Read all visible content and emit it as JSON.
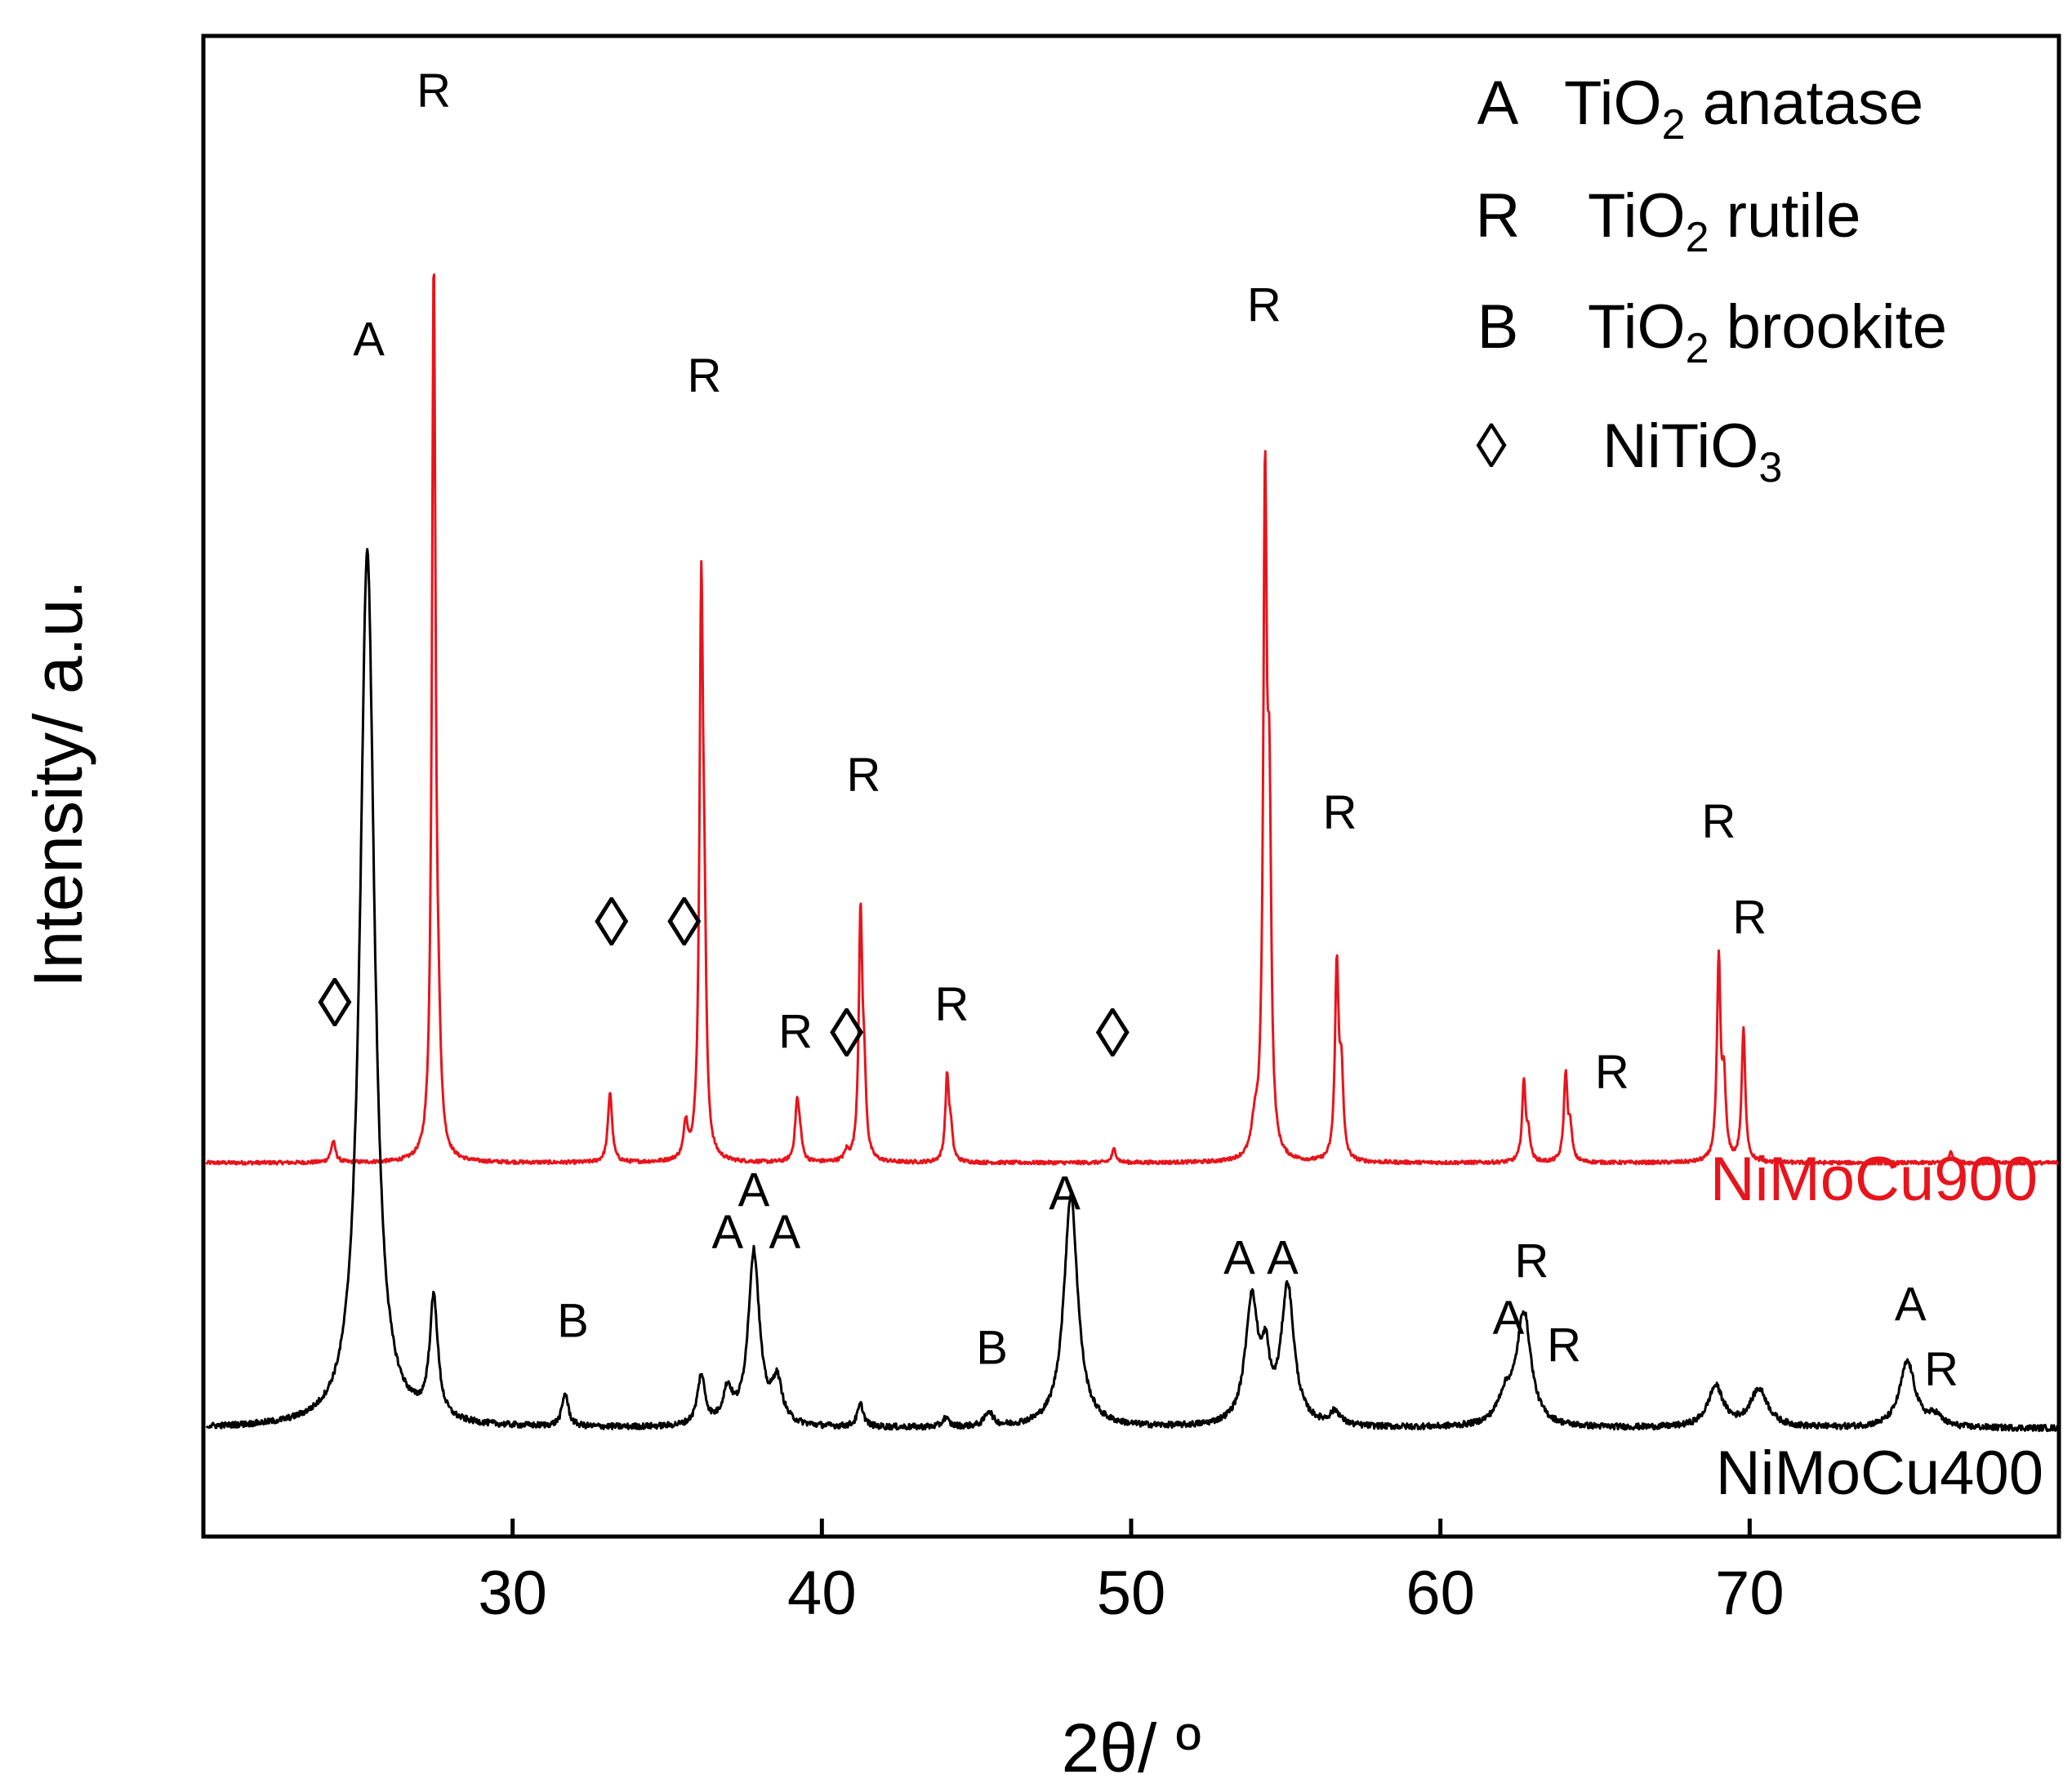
{
  "chart_data": {
    "type": "line",
    "title": "",
    "xlabel": "2θ/ º",
    "ylabel": "Intensity/ a.u.",
    "xlim": [
      20,
      80
    ],
    "ylim": [
      0,
      100
    ],
    "grid": false,
    "x_ticks": [
      30,
      40,
      50,
      60,
      70
    ],
    "x_tick_labels": [
      "30",
      "40",
      "50",
      "60",
      "70"
    ],
    "legend": {
      "position": "top-right",
      "entries": [
        {
          "symbol": "A",
          "name": "TiO",
          "sub": "2",
          "suffix": " anatase"
        },
        {
          "symbol": "R",
          "name": "TiO",
          "sub": "2",
          "suffix": " rutile"
        },
        {
          "symbol": "B",
          "name": "TiO",
          "sub": "2",
          "suffix": " brookite"
        },
        {
          "symbol": "◊",
          "name": "NiTiO",
          "sub": "3",
          "suffix": ""
        }
      ]
    },
    "series": [
      {
        "name": "NiMoCu900",
        "color": "#e8141c",
        "baseline": 24.9,
        "noise": 0.12,
        "peaks": [
          {
            "x": 24.2,
            "height": 1.4,
            "width": 0.09
          },
          {
            "x": 27.45,
            "height": 59.0,
            "width": 0.07
          },
          {
            "x": 27.6,
            "height": 5.0,
            "width": 0.09
          },
          {
            "x": 33.15,
            "height": 4.7,
            "width": 0.08
          },
          {
            "x": 35.6,
            "height": 2.3,
            "width": 0.08
          },
          {
            "x": 36.1,
            "height": 36.3,
            "width": 0.07
          },
          {
            "x": 36.2,
            "height": 11.0,
            "width": 0.07
          },
          {
            "x": 39.2,
            "height": 3.9,
            "width": 0.08
          },
          {
            "x": 39.3,
            "height": 1.2,
            "width": 0.07
          },
          {
            "x": 40.8,
            "height": 0.6,
            "width": 0.08
          },
          {
            "x": 41.25,
            "height": 16.2,
            "width": 0.07
          },
          {
            "x": 41.37,
            "height": 4.5,
            "width": 0.07
          },
          {
            "x": 44.05,
            "height": 5.6,
            "width": 0.07
          },
          {
            "x": 44.17,
            "height": 1.8,
            "width": 0.07
          },
          {
            "x": 49.45,
            "height": 0.9,
            "width": 0.08
          },
          {
            "x": 54.0,
            "height": 2.0,
            "width": 0.12
          },
          {
            "x": 54.33,
            "height": 43.5,
            "width": 0.07
          },
          {
            "x": 54.47,
            "height": 20.5,
            "width": 0.07
          },
          {
            "x": 56.65,
            "height": 13.0,
            "width": 0.07
          },
          {
            "x": 56.8,
            "height": 5.5,
            "width": 0.07
          },
          {
            "x": 62.7,
            "height": 5.3,
            "width": 0.07
          },
          {
            "x": 62.85,
            "height": 1.6,
            "width": 0.07
          },
          {
            "x": 64.05,
            "height": 5.8,
            "width": 0.07
          },
          {
            "x": 64.2,
            "height": 2.0,
            "width": 0.07
          },
          {
            "x": 69.0,
            "height": 13.3,
            "width": 0.07
          },
          {
            "x": 69.17,
            "height": 5.0,
            "width": 0.07
          },
          {
            "x": 69.8,
            "height": 8.8,
            "width": 0.07
          },
          {
            "x": 76.5,
            "height": 0.7,
            "width": 0.08
          }
        ],
        "label": "NiMoCu900"
      },
      {
        "name": "NiMoCu400",
        "color": "#000000",
        "baseline": 7.2,
        "noise": 0.2,
        "peaks": [
          {
            "x": 25.3,
            "height": 58.5,
            "width": 0.28
          },
          {
            "x": 27.45,
            "height": 8.0,
            "width": 0.16
          },
          {
            "x": 31.7,
            "height": 2.2,
            "width": 0.12
          },
          {
            "x": 36.1,
            "height": 3.3,
            "width": 0.15
          },
          {
            "x": 36.95,
            "height": 2.2,
            "width": 0.18
          },
          {
            "x": 37.8,
            "height": 11.6,
            "width": 0.22
          },
          {
            "x": 38.55,
            "height": 2.8,
            "width": 0.2
          },
          {
            "x": 41.25,
            "height": 1.5,
            "width": 0.12
          },
          {
            "x": 44.0,
            "height": 0.6,
            "width": 0.12
          },
          {
            "x": 45.4,
            "height": 1.0,
            "width": 0.15
          },
          {
            "x": 48.05,
            "height": 15.5,
            "width": 0.27
          },
          {
            "x": 53.9,
            "height": 8.3,
            "width": 0.25
          },
          {
            "x": 54.35,
            "height": 3.6,
            "width": 0.15
          },
          {
            "x": 55.06,
            "height": 9.2,
            "width": 0.25
          },
          {
            "x": 56.6,
            "height": 0.9,
            "width": 0.2
          },
          {
            "x": 62.1,
            "height": 1.8,
            "width": 0.3
          },
          {
            "x": 62.7,
            "height": 7.5,
            "width": 0.28
          },
          {
            "x": 68.9,
            "height": 2.7,
            "width": 0.3
          },
          {
            "x": 70.3,
            "height": 2.5,
            "width": 0.35
          },
          {
            "x": 75.1,
            "height": 4.4,
            "width": 0.3
          },
          {
            "x": 76.0,
            "height": 0.7,
            "width": 0.25
          }
        ],
        "label": "NiMoCu400"
      }
    ],
    "annotations": [
      {
        "text": "R",
        "x": 27.45,
        "y": 95.3
      },
      {
        "text": "A",
        "x": 25.35,
        "y": 78.7
      },
      {
        "text": "R",
        "x": 36.2,
        "y": 76.3
      },
      {
        "text": "R",
        "x": 54.3,
        "y": 81.0
      },
      {
        "text": "R",
        "x": 41.35,
        "y": 49.7
      },
      {
        "text": "R",
        "x": 56.75,
        "y": 47.2
      },
      {
        "text": "R",
        "x": 39.15,
        "y": 32.6
      },
      {
        "text": "R",
        "x": 44.2,
        "y": 34.4
      },
      {
        "text": "R",
        "x": 65.55,
        "y": 29.9
      },
      {
        "text": "R",
        "x": 69.0,
        "y": 46.6
      },
      {
        "text": "R",
        "x": 70.0,
        "y": 40.2
      },
      {
        "text": "◊",
        "x": 24.25,
        "y": 34.0
      },
      {
        "text": "◊",
        "x": 33.2,
        "y": 39.4
      },
      {
        "text": "◊",
        "x": 35.55,
        "y": 39.4
      },
      {
        "text": "◊",
        "x": 40.8,
        "y": 32.0
      },
      {
        "text": "◊",
        "x": 49.4,
        "y": 32.0
      },
      {
        "text": "A",
        "x": 47.85,
        "y": 21.8
      },
      {
        "text": "A",
        "x": 36.95,
        "y": 19.2
      },
      {
        "text": "A",
        "x": 37.8,
        "y": 22.0
      },
      {
        "text": "A",
        "x": 38.8,
        "y": 19.2
      },
      {
        "text": "A",
        "x": 53.5,
        "y": 17.5
      },
      {
        "text": "A",
        "x": 54.9,
        "y": 17.5
      },
      {
        "text": "B",
        "x": 31.95,
        "y": 13.3
      },
      {
        "text": "B",
        "x": 45.5,
        "y": 11.5
      },
      {
        "text": "R",
        "x": 62.95,
        "y": 17.3
      },
      {
        "text": "A",
        "x": 62.2,
        "y": 13.5
      },
      {
        "text": "R",
        "x": 64.0,
        "y": 11.7
      },
      {
        "text": "A",
        "x": 75.2,
        "y": 14.4
      },
      {
        "text": "R",
        "x": 76.2,
        "y": 10.1
      }
    ]
  }
}
